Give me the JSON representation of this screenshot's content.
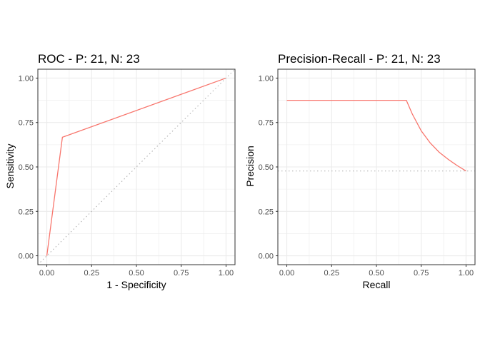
{
  "chart_data": [
    {
      "type": "line",
      "title": "ROC - P: 21, N: 23",
      "xlabel": "1 - Specificity",
      "ylabel": "Sensitivity",
      "xlim": [
        -0.05,
        1.05
      ],
      "ylim": [
        -0.05,
        1.05
      ],
      "x_ticks": [
        "0.00",
        "0.25",
        "0.50",
        "0.75",
        "1.00"
      ],
      "y_ticks": [
        "0.00",
        "0.25",
        "0.50",
        "0.75",
        "1.00"
      ],
      "grid": true,
      "series": [
        {
          "color": "#F8766D",
          "style": "solid",
          "x": [
            0.0,
            0.087,
            1.0
          ],
          "y": [
            0.0,
            0.667,
            1.0
          ]
        },
        {
          "color": "#B3B3B3",
          "style": "dotted",
          "x": [
            -0.05,
            1.05
          ],
          "y": [
            -0.05,
            1.05
          ]
        }
      ]
    },
    {
      "type": "line",
      "title": "Precision-Recall - P: 21, N: 23",
      "xlabel": "Recall",
      "ylabel": "Precision",
      "xlim": [
        -0.05,
        1.05
      ],
      "ylim": [
        -0.05,
        1.05
      ],
      "x_ticks": [
        "0.00",
        "0.25",
        "0.50",
        "0.75",
        "1.00"
      ],
      "y_ticks": [
        "0.00",
        "0.25",
        "0.50",
        "0.75",
        "1.00"
      ],
      "grid": true,
      "series": [
        {
          "color": "#F8766D",
          "style": "solid",
          "x": [
            0.0,
            0.667,
            0.7,
            0.75,
            0.8,
            0.85,
            0.9,
            0.95,
            1.0
          ],
          "y": [
            0.875,
            0.875,
            0.798,
            0.703,
            0.635,
            0.583,
            0.543,
            0.508,
            0.477
          ]
        },
        {
          "color": "#B3B3B3",
          "style": "dotted",
          "x": [
            -0.05,
            1.05
          ],
          "y": [
            0.477,
            0.477
          ]
        }
      ]
    }
  ]
}
